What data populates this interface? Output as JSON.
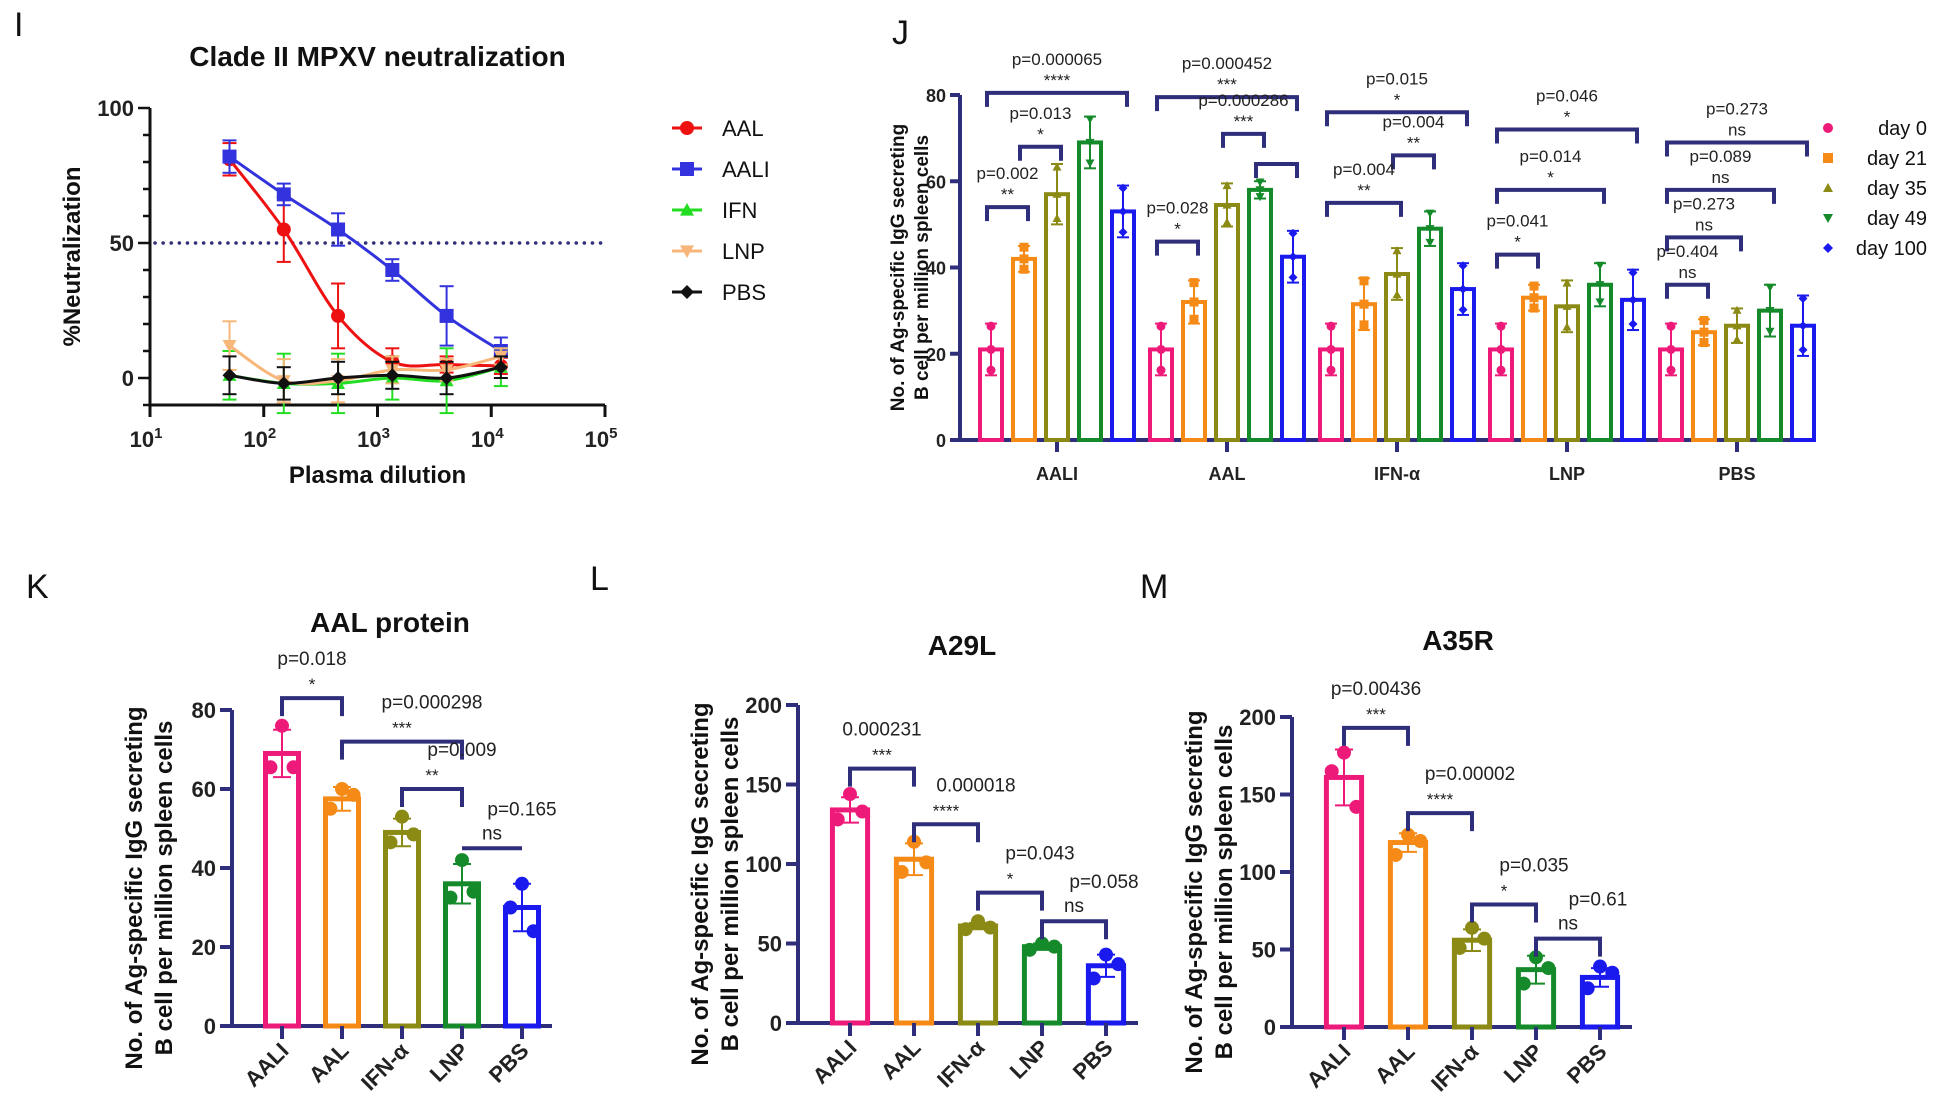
{
  "panel_letters": {
    "I": "I",
    "J": "J",
    "K": "K",
    "L": "L",
    "M": "M"
  },
  "chart_data": [
    {
      "id": "I",
      "type": "line",
      "title": "Clade II MPXV neutralization",
      "xlabel": "Plasma dilution",
      "ylabel": "%Neutralization",
      "xscale": "log",
      "xlim": [
        10,
        100000
      ],
      "xticks": [
        {
          "v": 10,
          "base": "10",
          "exp": "1"
        },
        {
          "v": 100,
          "base": "10",
          "exp": "2"
        },
        {
          "v": 1000,
          "base": "10",
          "exp": "3"
        },
        {
          "v": 10000,
          "base": "10",
          "exp": "4"
        },
        {
          "v": 100000,
          "base": "10",
          "exp": "5"
        }
      ],
      "ylim": [
        -10,
        100
      ],
      "yticks": [
        0,
        50,
        100
      ],
      "reference_line": {
        "y": 50,
        "style": "dotted",
        "color": "#2e2e7a"
      },
      "legend_position": "right",
      "x": [
        50,
        150,
        450,
        1350,
        4050,
        12150
      ],
      "series": [
        {
          "name": "AAL",
          "color": "#ee1111",
          "marker": "circle",
          "values": [
            81,
            55,
            23,
            6,
            5,
            4.5
          ],
          "err": [
            6,
            12,
            12,
            5,
            3,
            3
          ]
        },
        {
          "name": "AALI",
          "color": "#3333dd",
          "marker": "square",
          "values": [
            82,
            68,
            55,
            40,
            23,
            10
          ],
          "err": [
            6,
            4,
            6,
            4,
            11,
            5
          ]
        },
        {
          "name": "IFN",
          "color": "#22dd22",
          "marker": "triangle-up",
          "values": [
            1,
            -2,
            -2,
            0,
            -1,
            4
          ],
          "err": [
            9,
            11,
            11,
            8,
            12,
            7
          ]
        },
        {
          "name": "LNP",
          "color": "#f7b77a",
          "marker": "triangle-down",
          "values": [
            12,
            -1,
            -1,
            3,
            3,
            8
          ],
          "err": [
            9,
            8,
            8,
            5,
            4,
            3
          ]
        },
        {
          "name": "PBS",
          "color": "#111111",
          "marker": "diamond",
          "values": [
            1,
            -2,
            0,
            1,
            0,
            4
          ],
          "err": [
            7,
            6,
            6,
            5,
            6,
            4
          ]
        }
      ]
    },
    {
      "id": "J",
      "type": "bar",
      "title": "",
      "ylabel": [
        "No. of  Ag-specific IgG secreting",
        "B cell per million spleen cells"
      ],
      "ylim": [
        0,
        80
      ],
      "yticks": [
        0,
        20,
        40,
        60,
        80
      ],
      "categories": [
        "AALI",
        "AAL",
        "IFN-α",
        "LNP",
        "PBS"
      ],
      "legend_position": "right",
      "series": [
        {
          "name": "day 0",
          "color": "#ee1a7a",
          "marker": "circle",
          "values": [
            21,
            21,
            21,
            21,
            21
          ],
          "err": [
            6,
            6,
            6,
            6,
            6
          ]
        },
        {
          "name": "day 21",
          "color": "#f58a16",
          "marker": "square",
          "values": [
            42,
            32,
            31.5,
            33,
            25
          ],
          "err": [
            3,
            5,
            6,
            3,
            3
          ]
        },
        {
          "name": "day 35",
          "color": "#8a8a15",
          "marker": "triangle-up",
          "values": [
            57,
            54.5,
            38.5,
            31,
            26.5
          ],
          "err": [
            7,
            5,
            6,
            6,
            4
          ]
        },
        {
          "name": "day 49",
          "color": "#158a2a",
          "marker": "triangle-down",
          "values": [
            69,
            58,
            49,
            36,
            30
          ],
          "err": [
            6,
            2,
            4,
            5,
            6
          ]
        },
        {
          "name": "day 100",
          "color": "#1a1aee",
          "marker": "diamond",
          "values": [
            53,
            42.5,
            35,
            32.5,
            26.5
          ],
          "err": [
            6,
            6,
            6,
            7,
            7
          ]
        }
      ],
      "comparisons": [
        {
          "group": 0,
          "from": 0,
          "to": 4,
          "label": "p=0.000065",
          "stars": "****",
          "y": 80.5
        },
        {
          "group": 0,
          "from": 1,
          "to": 2,
          "label": "p=0.013",
          "stars": "*",
          "y": 68
        },
        {
          "group": 0,
          "from": 0,
          "to": 1,
          "label": "p=0.002",
          "stars": "**",
          "y": 54
        },
        {
          "group": 1,
          "from": 0,
          "to": 4,
          "label": "p=0.000452",
          "stars": "***",
          "y": 79.5
        },
        {
          "group": 1,
          "from": 2,
          "to": 3,
          "label": "p=0.000286",
          "stars": "***",
          "y": 71
        },
        {
          "group": 1,
          "from": 3,
          "to": 4,
          "label": "",
          "stars": "",
          "y": 64
        },
        {
          "group": 1,
          "from": 0,
          "to": 1,
          "label": "p=0.028",
          "stars": "*",
          "y": 46
        },
        {
          "group": 2,
          "from": 0,
          "to": 4,
          "label": "p=0.015",
          "stars": "*",
          "y": 76
        },
        {
          "group": 2,
          "from": 2,
          "to": 3,
          "label": "p=0.004",
          "stars": "**",
          "y": 66
        },
        {
          "group": 2,
          "from": 0,
          "to": 2,
          "label": "p=0.004",
          "stars": "**",
          "y": 55
        },
        {
          "group": 3,
          "from": 0,
          "to": 4,
          "label": "p=0.046",
          "stars": "*",
          "y": 72
        },
        {
          "group": 3,
          "from": 0,
          "to": 3,
          "label": "p=0.014",
          "stars": "*",
          "y": 58
        },
        {
          "group": 3,
          "from": 0,
          "to": 1,
          "label": "p=0.041",
          "stars": "*",
          "y": 43
        },
        {
          "group": 4,
          "from": 0,
          "to": 4,
          "label": "p=0.273",
          "stars": "ns",
          "y": 69
        },
        {
          "group": 4,
          "from": 0,
          "to": 3,
          "label": "p=0.089",
          "stars": "ns",
          "y": 58
        },
        {
          "group": 4,
          "from": 0,
          "to": 2,
          "label": "p=0.273",
          "stars": "ns",
          "y": 47
        },
        {
          "group": 4,
          "from": 0,
          "to": 1,
          "label": "p=0.404",
          "stars": "ns",
          "y": 36
        }
      ]
    },
    {
      "id": "K",
      "type": "bar",
      "title": "AAL protein",
      "ylabel": [
        "No. of  Ag-specific IgG secreting",
        "B cell per million spleen cells"
      ],
      "ylim": [
        0,
        80
      ],
      "yticks": [
        0,
        20,
        40,
        60,
        80
      ],
      "categories": [
        "AALI",
        "AAL",
        "IFN-α",
        "LNP",
        "PBS"
      ],
      "colors": [
        "#ee1a7a",
        "#f58a16",
        "#8a8a15",
        "#158a2a",
        "#1a1aee"
      ],
      "values": [
        69,
        57.5,
        49,
        36,
        30
      ],
      "err": [
        6,
        3,
        3.5,
        5,
        6
      ],
      "points": [
        [
          76,
          65.5,
          65.5
        ],
        [
          60,
          55,
          58.5
        ],
        [
          53,
          46.5,
          48.5
        ],
        [
          42,
          32.5,
          34
        ],
        [
          36,
          30,
          24
        ]
      ],
      "comparisons": [
        {
          "from": 0,
          "to": 1,
          "label": "p=0.018",
          "stars": "*",
          "y": 83
        },
        {
          "from": 1,
          "to": 3,
          "label": "p=0.000298",
          "stars": "***",
          "y": 72
        },
        {
          "from": 2,
          "to": 3,
          "label": "p=0.009",
          "stars": "**",
          "y": 60
        },
        {
          "from": 3,
          "to": 4,
          "label": "p=0.165",
          "stars": "ns",
          "y": 45,
          "flat": true
        }
      ]
    },
    {
      "id": "L",
      "type": "bar",
      "title": "A29L",
      "ylabel": [
        "No. of  Ag-specific IgG secreting",
        "B cell per million spleen cells"
      ],
      "ylim": [
        0,
        200
      ],
      "yticks": [
        0,
        50,
        100,
        150,
        200
      ],
      "categories": [
        "AALI",
        "AAL",
        "IFN-α",
        "LNP",
        "PBS"
      ],
      "colors": [
        "#ee1a7a",
        "#f58a16",
        "#8a8a15",
        "#158a2a",
        "#1a1aee"
      ],
      "values": [
        134,
        103,
        61,
        48,
        36
      ],
      "err": [
        8,
        10,
        2,
        2,
        7
      ],
      "points": [
        [
          144,
          128,
          133
        ],
        [
          114,
          95,
          101
        ],
        [
          64,
          59,
          60
        ],
        [
          50,
          46,
          48
        ],
        [
          43,
          28,
          37
        ]
      ],
      "comparisons": [
        {
          "from": 0,
          "to": 1,
          "label": "0.000231",
          "stars": "***",
          "y": 160
        },
        {
          "from": 1,
          "to": 2,
          "label": "0.000018",
          "stars": "****",
          "y": 125
        },
        {
          "from": 2,
          "to": 3,
          "label": "p=0.043",
          "stars": "*",
          "y": 82
        },
        {
          "from": 3,
          "to": 4,
          "label": "p=0.058",
          "stars": "ns",
          "y": 64
        }
      ]
    },
    {
      "id": "M",
      "type": "bar",
      "title": "A35R",
      "ylabel": [
        "No. of  Ag-specific IgG secreting",
        "B cell per million spleen cells"
      ],
      "ylim": [
        0,
        200
      ],
      "yticks": [
        0,
        50,
        100,
        150,
        200
      ],
      "categories": [
        "AALI",
        "AAL",
        "IFN-α",
        "LNP",
        "PBS"
      ],
      "colors": [
        "#ee1a7a",
        "#f58a16",
        "#8a8a15",
        "#158a2a",
        "#1a1aee"
      ],
      "values": [
        161,
        119,
        56,
        37,
        32
      ],
      "err": [
        18,
        6,
        7,
        9,
        6
      ],
      "points": [
        [
          177,
          165,
          142
        ],
        [
          124,
          111,
          120
        ],
        [
          64,
          51,
          57
        ],
        [
          45,
          28,
          38
        ],
        [
          39,
          25,
          35
        ]
      ],
      "comparisons": [
        {
          "from": 0,
          "to": 1,
          "label": "p=0.00436",
          "stars": "***",
          "y": 193
        },
        {
          "from": 1,
          "to": 2,
          "label": "p=0.00002",
          "stars": "****",
          "y": 138
        },
        {
          "from": 2,
          "to": 3,
          "label": "p=0.035",
          "stars": "*",
          "y": 79
        },
        {
          "from": 3,
          "to": 4,
          "label": "p=0.61",
          "stars": "ns",
          "y": 57
        }
      ]
    }
  ]
}
